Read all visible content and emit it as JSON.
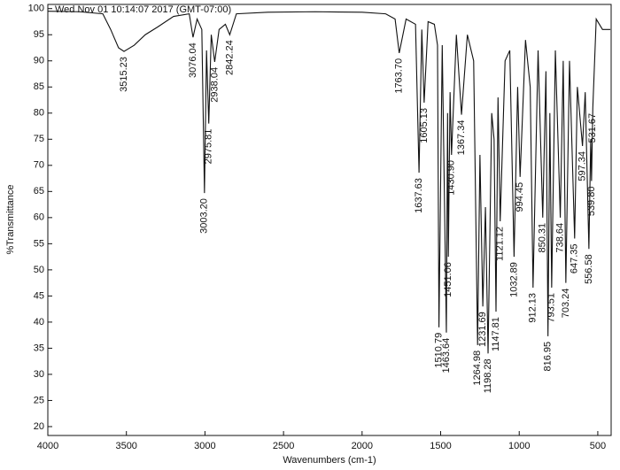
{
  "chart_data": {
    "type": "line",
    "subtitle": "Wed Nov 01 10:14:07 2017 (GMT-07:00)",
    "x_label": "Wavenumbers (cm-1)",
    "y_label": "%Transmittance",
    "color": "#111111",
    "xlim": [
      4000,
      415
    ],
    "ylim": [
      18.3,
      100.8
    ],
    "xticks": [
      4000,
      3500,
      3000,
      2500,
      2000,
      1500,
      1000,
      500
    ],
    "yticks": [
      20,
      25,
      30,
      35,
      40,
      45,
      50,
      55,
      60,
      65,
      70,
      75,
      80,
      85,
      90,
      95,
      100
    ],
    "series": [
      {
        "x": [
          4000,
          3800,
          3650,
          3600,
          3550,
          3515.23,
          3450,
          3380,
          3300,
          3200,
          3100,
          3076.04,
          3050,
          3020,
          3003.2,
          2990,
          2975.81,
          2960,
          2938.04,
          2910,
          2870,
          2842.24,
          2800,
          2600,
          2300,
          2000,
          1850,
          1790,
          1763.7,
          1720,
          1660,
          1637.63,
          1620,
          1605.13,
          1580,
          1540,
          1520,
          1510.79,
          1490,
          1463.64,
          1456,
          1451.06,
          1440,
          1430.9,
          1400,
          1367.34,
          1330,
          1290,
          1264.98,
          1250,
          1231.69,
          1215,
          1198.28,
          1175,
          1160,
          1147.81,
          1135,
          1121.12,
          1090,
          1060,
          1032.89,
          1010,
          994.45,
          960,
          930,
          912.13,
          880,
          850.31,
          830,
          816.95,
          805,
          793.51,
          770,
          738.64,
          720,
          703.24,
          680,
          647.35,
          630,
          597.34,
          580,
          556.58,
          545,
          539.8,
          531.67,
          510,
          470,
          420
        ],
        "values": [
          99.5,
          99.4,
          99,
          96,
          92.5,
          91.8,
          93,
          95,
          96.5,
          98.5,
          99,
          94.5,
          98,
          96,
          64.7,
          92,
          78,
          95,
          89.8,
          96,
          97,
          95,
          99,
          99.3,
          99.4,
          99.3,
          99,
          98,
          91.5,
          98,
          97,
          68.6,
          96,
          82,
          97.5,
          97,
          93,
          39,
          93,
          38,
          80,
          52.5,
          84,
          72,
          95,
          79.7,
          95,
          90,
          35.6,
          72,
          43,
          62,
          34,
          80,
          75,
          42,
          83,
          59.3,
          90,
          92,
          52.5,
          85,
          67.8,
          94,
          85,
          46.6,
          92,
          60,
          88,
          37.3,
          80,
          46.6,
          92,
          60,
          90,
          47.5,
          90,
          56,
          85,
          73.7,
          84,
          54,
          75,
          67,
          81,
          98,
          96,
          96
        ]
      }
    ],
    "peaks": [
      {
        "x": 3515.23,
        "y": 91.8,
        "label": "3515.23"
      },
      {
        "x": 3076.04,
        "y": 94.5,
        "label": "3076.04"
      },
      {
        "x": 3003.2,
        "y": 64.7,
        "label": "3003.20"
      },
      {
        "x": 2975.81,
        "y": 78,
        "label": "2975.81"
      },
      {
        "x": 2938.04,
        "y": 89.8,
        "label": "2938.04"
      },
      {
        "x": 2842.24,
        "y": 95,
        "label": "2842.24"
      },
      {
        "x": 1763.7,
        "y": 91.5,
        "label": "1763.70"
      },
      {
        "x": 1637.63,
        "y": 68.6,
        "label": "1637.63"
      },
      {
        "x": 1605.13,
        "y": 82,
        "label": "1605.13"
      },
      {
        "x": 1510.79,
        "y": 39,
        "label": "1510.79"
      },
      {
        "x": 1463.64,
        "y": 38,
        "label": "1463.64"
      },
      {
        "x": 1451.06,
        "y": 52.5,
        "label": "1451.06"
      },
      {
        "x": 1430.9,
        "y": 72,
        "label": "1430.90"
      },
      {
        "x": 1367.34,
        "y": 79.7,
        "label": "1367.34"
      },
      {
        "x": 1264.98,
        "y": 35.6,
        "label": "1264.98"
      },
      {
        "x": 1231.69,
        "y": 43,
        "label": "1231.69"
      },
      {
        "x": 1198.28,
        "y": 34,
        "label": "1198.28"
      },
      {
        "x": 1147.81,
        "y": 42,
        "label": "1147.81"
      },
      {
        "x": 1121.12,
        "y": 59.3,
        "label": "1121.12"
      },
      {
        "x": 1032.89,
        "y": 52.5,
        "label": "1032.89"
      },
      {
        "x": 994.45,
        "y": 67.8,
        "label": "994.45"
      },
      {
        "x": 912.13,
        "y": 46.6,
        "label": "912.13"
      },
      {
        "x": 850.31,
        "y": 60,
        "label": "850.31"
      },
      {
        "x": 816.95,
        "y": 37.3,
        "label": "816.95"
      },
      {
        "x": 793.51,
        "y": 46.6,
        "label": "793.51"
      },
      {
        "x": 738.64,
        "y": 60,
        "label": "738.64"
      },
      {
        "x": 703.24,
        "y": 47.5,
        "label": "703.24"
      },
      {
        "x": 647.35,
        "y": 56,
        "label": "647.35"
      },
      {
        "x": 597.34,
        "y": 73.7,
        "label": "597.34"
      },
      {
        "x": 556.58,
        "y": 54,
        "label": "556.58"
      },
      {
        "x": 539.8,
        "y": 67,
        "label": "539.80"
      },
      {
        "x": 531.67,
        "y": 81,
        "label": "531.67"
      }
    ]
  }
}
